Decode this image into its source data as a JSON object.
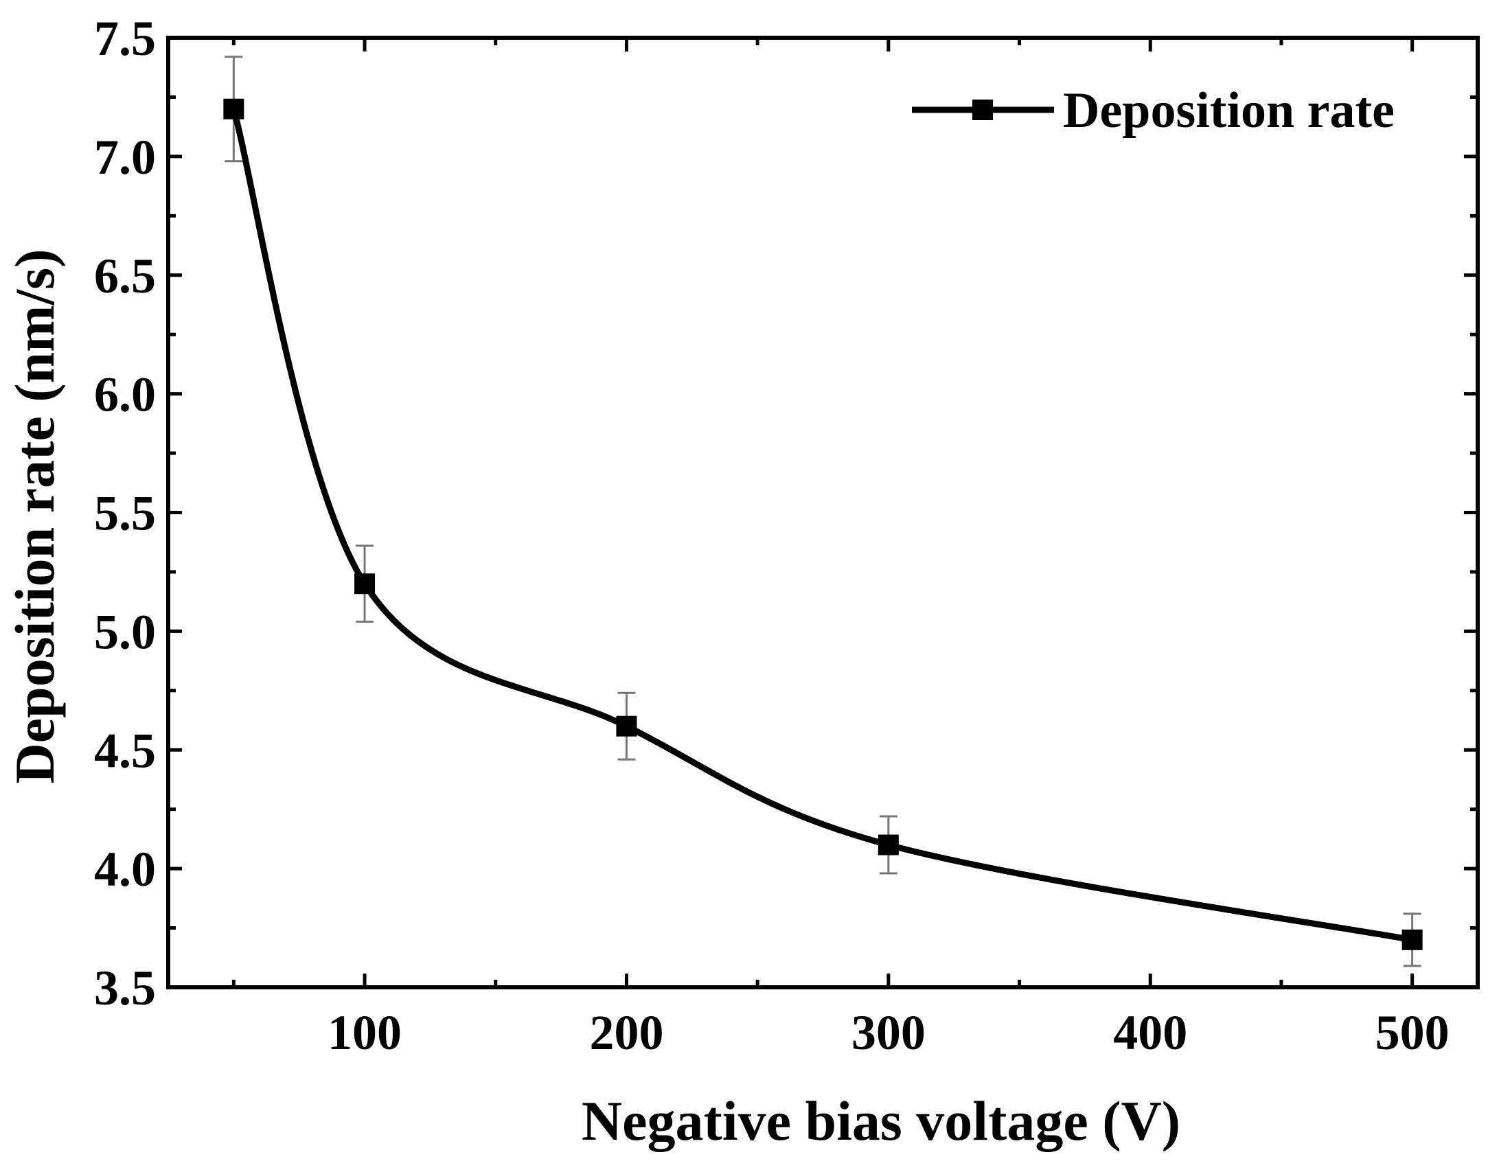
{
  "chart_data": {
    "type": "line",
    "xlabel": "Negative bias voltage (V)",
    "ylabel": "Deposition rate (nm/s)",
    "xlim": [
      25,
      525
    ],
    "ylim": [
      3.5,
      7.5
    ],
    "xticks": [
      100,
      200,
      300,
      400,
      500
    ],
    "xtick_labels": [
      "100",
      "200",
      "300",
      "400",
      "500"
    ],
    "yticks": [
      3.5,
      4.0,
      4.5,
      5.0,
      5.5,
      6.0,
      6.5,
      7.0,
      7.5
    ],
    "ytick_labels": [
      "3.5",
      "4.0",
      "4.5",
      "5.0",
      "5.5",
      "6.0",
      "6.5",
      "7.0",
      "7.5"
    ],
    "grid": false,
    "legend_position": "top-right",
    "series": [
      {
        "name": "Deposition rate",
        "color": "#000000",
        "marker": "square",
        "smooth": true,
        "x": [
          50,
          100,
          200,
          300,
          500
        ],
        "y": [
          7.2,
          5.2,
          4.6,
          4.1,
          3.7
        ],
        "error": [
          0.22,
          0.16,
          0.14,
          0.12,
          0.11
        ]
      }
    ]
  }
}
